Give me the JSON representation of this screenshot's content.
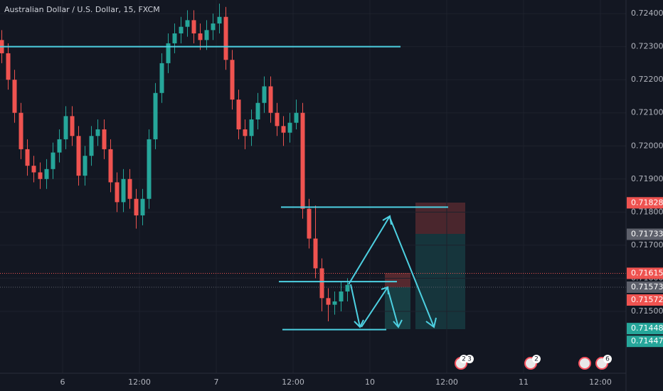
{
  "chart_data": {
    "type": "candlestick",
    "title": "Australian Dollar / U.S. Dollar, 15, FXCM",
    "x": [
      -9.5,
      -8.5,
      -7.5,
      -6.5,
      -5.5,
      -4.5,
      -3.5,
      -2.5,
      -1.5,
      -0.5,
      0.5,
      1.5,
      2.5,
      3.5,
      4.5,
      5.5,
      6.5,
      7.5,
      8.5,
      9.5,
      10.5,
      11.5,
      12.5,
      13.5,
      14.5,
      15.5,
      16.5,
      17.5,
      18.5,
      19.5,
      20.5,
      21.5,
      22.5,
      23.5,
      24.5,
      25.5,
      26.5,
      27.5,
      28.5,
      29.5,
      30.5,
      31.5,
      32.5,
      33.5,
      34.5,
      35.5,
      36.5,
      37.5,
      38.5,
      39.5,
      40.5,
      41.5,
      42.5,
      43.5,
      44.5
    ],
    "open": [
      0.7232,
      0.7228,
      0.722,
      0.721,
      0.7199,
      0.7194,
      0.7192,
      0.719,
      0.7193,
      0.7198,
      0.7202,
      0.7209,
      0.7203,
      0.7191,
      0.7197,
      0.7203,
      0.7205,
      0.7199,
      0.7189,
      0.7183,
      0.719,
      0.7184,
      0.7179,
      0.7184,
      0.7202,
      0.7216,
      0.7225,
      0.7231,
      0.7234,
      0.7236,
      0.7238,
      0.7234,
      0.7232,
      0.7235,
      0.7237,
      0.7239,
      0.7226,
      0.7214,
      0.7205,
      0.7203,
      0.7208,
      0.7213,
      0.7218,
      0.721,
      0.7206,
      0.7204,
      0.7207,
      0.721,
      0.7181,
      0.7172,
      0.7163,
      0.7154,
      0.7152,
      0.7153,
      0.7156
    ],
    "high": [
      0.7235,
      0.7231,
      0.7223,
      0.7213,
      0.7202,
      0.7197,
      0.7195,
      0.7196,
      0.7201,
      0.7205,
      0.7212,
      0.7212,
      0.7206,
      0.72,
      0.7206,
      0.7208,
      0.7208,
      0.7202,
      0.7192,
      0.7193,
      0.7193,
      0.7187,
      0.7187,
      0.7205,
      0.7219,
      0.7228,
      0.7234,
      0.7237,
      0.7239,
      0.7241,
      0.7241,
      0.7237,
      0.7238,
      0.724,
      0.7243,
      0.7242,
      0.7229,
      0.7217,
      0.7208,
      0.7211,
      0.7216,
      0.7221,
      0.7221,
      0.7213,
      0.7209,
      0.721,
      0.7214,
      0.7213,
      0.7184,
      0.7182,
      0.7166,
      0.7157,
      0.7156,
      0.7159,
      0.716
    ],
    "low": [
      0.7225,
      0.7217,
      0.7207,
      0.7196,
      0.7191,
      0.7189,
      0.7187,
      0.7187,
      0.719,
      0.7195,
      0.7199,
      0.72,
      0.7188,
      0.7188,
      0.7194,
      0.72,
      0.7196,
      0.7186,
      0.718,
      0.718,
      0.7181,
      0.7175,
      0.7176,
      0.7181,
      0.7199,
      0.7213,
      0.7222,
      0.7228,
      0.7231,
      0.7233,
      0.7231,
      0.7229,
      0.7229,
      0.7232,
      0.7234,
      0.7223,
      0.7211,
      0.7202,
      0.7199,
      0.72,
      0.7205,
      0.721,
      0.7207,
      0.7203,
      0.72,
      0.7201,
      0.7205,
      0.7178,
      0.7169,
      0.716,
      0.715,
      0.7147,
      0.7149,
      0.715,
      0.7153
    ],
    "close": [
      0.7228,
      0.722,
      0.721,
      0.7199,
      0.7194,
      0.7192,
      0.719,
      0.7193,
      0.7198,
      0.7202,
      0.7209,
      0.7203,
      0.7191,
      0.7197,
      0.7203,
      0.7205,
      0.7199,
      0.7189,
      0.7183,
      0.719,
      0.7184,
      0.7179,
      0.7184,
      0.7202,
      0.7216,
      0.7225,
      0.7231,
      0.7234,
      0.7236,
      0.7238,
      0.7234,
      0.7232,
      0.7235,
      0.7237,
      0.7239,
      0.7226,
      0.7214,
      0.7205,
      0.7203,
      0.7208,
      0.7213,
      0.7218,
      0.721,
      0.7206,
      0.7204,
      0.7207,
      0.721,
      0.7181,
      0.7172,
      0.7163,
      0.7154,
      0.7152,
      0.7153,
      0.7156,
      0.7158
    ],
    "up_color": "#26a69a",
    "down_color": "#ef5350",
    "xlim": [
      -9.78,
      88
    ],
    "ylim": [
      0.71313,
      0.72441
    ],
    "xticks": [
      {
        "value": 0,
        "label": "6"
      },
      {
        "value": 12,
        "label": "12:00"
      },
      {
        "value": 24,
        "label": "7"
      },
      {
        "value": 36,
        "label": "12:00"
      },
      {
        "value": 48,
        "label": "10"
      },
      {
        "value": 60,
        "label": "12:00"
      },
      {
        "value": 72,
        "label": "11"
      },
      {
        "value": 84,
        "label": "12:00"
      }
    ],
    "yticks": [
      {
        "value": 0.724,
        "label": "0.72400"
      },
      {
        "value": 0.723,
        "label": "0.72300"
      },
      {
        "value": 0.722,
        "label": "0.72200"
      },
      {
        "value": 0.721,
        "label": "0.72100"
      },
      {
        "value": 0.72,
        "label": "0.72000"
      },
      {
        "value": 0.719,
        "label": "0.71900"
      },
      {
        "value": 0.718,
        "label": "0.71800"
      },
      {
        "value": 0.717,
        "label": "0.71700"
      },
      {
        "value": 0.716,
        "label": "0.71600"
      },
      {
        "value": 0.715,
        "label": "0.71500"
      }
    ],
    "grid": true,
    "horizontal_lines": [
      {
        "price": 0.723,
        "from": -9.78,
        "to": 52.78
      },
      {
        "price": 0.71815,
        "from": 34.11,
        "to": 60.22
      },
      {
        "price": 0.7159,
        "from": 33.78,
        "to": 52.22
      },
      {
        "price": 0.71445,
        "from": 34.33,
        "to": 50.56
      }
    ],
    "line_color": "#4dd0e1",
    "price_labels": [
      {
        "value": 0.71828,
        "color": "#ef5350"
      },
      {
        "value": 0.71733,
        "color": "#5d606b"
      },
      {
        "value": 0.71615,
        "color": "#ef5350",
        "dotted": true
      },
      {
        "value": 0.71573,
        "color": "#5d606b",
        "dotted": true
      },
      {
        "value": 0.71572,
        "color": "#ef5350"
      },
      {
        "value": 0.71448,
        "color": "#26a69a"
      },
      {
        "value": 0.71447,
        "color": "#26a69a"
      }
    ],
    "events": [
      "2",
      "3",
      "2",
      "6"
    ]
  }
}
